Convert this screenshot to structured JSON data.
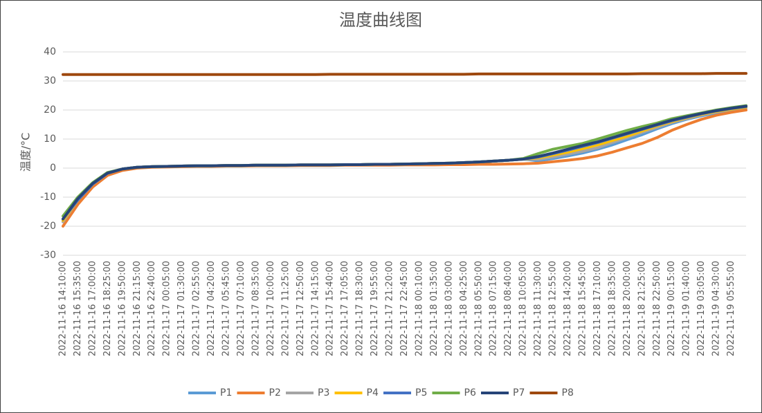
{
  "chart_data": {
    "type": "line",
    "title": "温度曲线图",
    "y_label": "温度/°C",
    "categories": [
      "2022-11-16 14:10:00",
      "2022-11-16 15:35:00",
      "2022-11-16 17:00:00",
      "2022-11-16 18:25:00",
      "2022-11-16 19:50:00",
      "2022-11-16 21:15:00",
      "2022-11-16 22:40:00",
      "2022-11-17 00:05:00",
      "2022-11-17 01:30:00",
      "2022-11-17 02:55:00",
      "2022-11-17 04:20:00",
      "2022-11-17 05:45:00",
      "2022-11-17 07:10:00",
      "2022-11-17 08:35:00",
      "2022-11-17 10:00:00",
      "2022-11-17 11:25:00",
      "2022-11-17 12:50:00",
      "2022-11-17 14:15:00",
      "2022-11-17 15:40:00",
      "2022-11-17 17:05:00",
      "2022-11-17 18:30:00",
      "2022-11-17 19:55:00",
      "2022-11-17 21:20:00",
      "2022-11-17 22:45:00",
      "2022-11-18 00:10:00",
      "2022-11-18 01:35:00",
      "2022-11-18 03:00:00",
      "2022-11-18 04:25:00",
      "2022-11-18 05:50:00",
      "2022-11-18 07:15:00",
      "2022-11-18 08:40:00",
      "2022-11-18 10:05:00",
      "2022-11-18 11:30:00",
      "2022-11-18 12:55:00",
      "2022-11-18 14:20:00",
      "2022-11-18 15:45:00",
      "2022-11-18 17:10:00",
      "2022-11-18 18:35:00",
      "2022-11-18 20:00:00",
      "2022-11-18 21:25:00",
      "2022-11-18 22:50:00",
      "2022-11-19 00:15:00",
      "2022-11-19 01:40:00",
      "2022-11-19 03:05:00",
      "2022-11-19 04:30:00",
      "2022-11-19 05:55:00",
      null
    ],
    "series": [
      {
        "name": "P1",
        "color": "#5b9bd5",
        "values": [
          -18,
          -11,
          -5.5,
          -1.8,
          -0.3,
          0.3,
          0.5,
          0.6,
          0.7,
          0.8,
          0.8,
          0.9,
          0.9,
          1,
          1,
          1,
          1.1,
          1.1,
          1.1,
          1.2,
          1.2,
          1.3,
          1.3,
          1.4,
          1.5,
          1.6,
          1.7,
          1.9,
          2.1,
          2.4,
          2.7,
          3.1,
          2.5,
          3.3,
          4.2,
          5.2,
          6.5,
          8,
          9.8,
          11.5,
          13.5,
          15.3,
          16.8,
          18,
          19,
          20,
          20.8
        ]
      },
      {
        "name": "P2",
        "color": "#ed7d31",
        "values": [
          -20,
          -12.5,
          -6.5,
          -2.5,
          -0.8,
          0,
          0.3,
          0.4,
          0.5,
          0.6,
          0.6,
          0.7,
          0.7,
          0.8,
          0.8,
          0.8,
          0.9,
          0.9,
          0.9,
          1,
          1,
          1,
          1,
          1.1,
          1.1,
          1.1,
          1.2,
          1.2,
          1.3,
          1.3,
          1.4,
          1.5,
          1.7,
          2.2,
          2.7,
          3.3,
          4.2,
          5.5,
          7,
          8.5,
          10.5,
          13,
          15,
          16.8,
          18.2,
          19.2,
          20
        ]
      },
      {
        "name": "P3",
        "color": "#a5a5a5",
        "values": [
          -18.5,
          -11,
          -5.5,
          -1.8,
          -0.3,
          0.3,
          0.5,
          0.6,
          0.7,
          0.8,
          0.8,
          0.9,
          0.9,
          1,
          1,
          1,
          1.1,
          1.1,
          1.1,
          1.2,
          1.2,
          1.3,
          1.3,
          1.4,
          1.5,
          1.6,
          1.7,
          1.9,
          2.1,
          2.4,
          2.7,
          3.1,
          3,
          3.8,
          4.8,
          5.8,
          7,
          8.8,
          10.5,
          12.3,
          14,
          15.7,
          17,
          18.3,
          19.3,
          20.2,
          21
        ]
      },
      {
        "name": "P4",
        "color": "#ffc000",
        "values": [
          -18,
          -11,
          -5.5,
          -1.8,
          -0.3,
          0.3,
          0.5,
          0.6,
          0.7,
          0.8,
          0.8,
          0.9,
          0.9,
          1,
          1,
          1,
          1.1,
          1.1,
          1.1,
          1.2,
          1.2,
          1.3,
          1.3,
          1.4,
          1.5,
          1.6,
          1.7,
          1.9,
          2.1,
          2.4,
          2.7,
          3.1,
          3.5,
          4.5,
          5.5,
          6.7,
          8,
          9.5,
          11,
          12.8,
          14.5,
          16,
          17.3,
          18.5,
          19.5,
          20.3,
          21
        ]
      },
      {
        "name": "P5",
        "color": "#4472c4",
        "values": [
          -17.5,
          -11,
          -5.5,
          -1.8,
          -0.3,
          0.3,
          0.5,
          0.6,
          0.7,
          0.8,
          0.8,
          0.9,
          0.9,
          1,
          1,
          1,
          1.1,
          1.1,
          1.1,
          1.2,
          1.2,
          1.3,
          1.3,
          1.4,
          1.5,
          1.6,
          1.7,
          1.9,
          2.1,
          2.4,
          2.7,
          3.1,
          3.8,
          5,
          6.2,
          7.5,
          8.8,
          10.3,
          11.8,
          13.3,
          14.8,
          16.3,
          17.5,
          18.7,
          19.7,
          20.5,
          21.2
        ]
      },
      {
        "name": "P6",
        "color": "#70ad47",
        "values": [
          -16.5,
          -10,
          -5,
          -1.5,
          -0.3,
          0.3,
          0.5,
          0.6,
          0.7,
          0.8,
          0.8,
          0.9,
          0.9,
          1,
          1,
          1,
          1.1,
          1.1,
          1.1,
          1.2,
          1.2,
          1.3,
          1.3,
          1.4,
          1.5,
          1.6,
          1.7,
          1.9,
          2.1,
          2.4,
          2.7,
          3.3,
          5,
          6.5,
          7.5,
          8.5,
          10,
          11.5,
          13,
          14.3,
          15.5,
          17,
          18,
          19,
          20,
          20.8,
          21.5
        ]
      },
      {
        "name": "P7",
        "color": "#264478",
        "values": [
          -17.5,
          -10.5,
          -5.3,
          -1.7,
          -0.3,
          0.3,
          0.5,
          0.6,
          0.7,
          0.8,
          0.8,
          0.9,
          0.9,
          1,
          1,
          1,
          1.1,
          1.1,
          1.1,
          1.2,
          1.2,
          1.3,
          1.3,
          1.4,
          1.5,
          1.6,
          1.7,
          1.9,
          2.1,
          2.4,
          2.7,
          3.1,
          4,
          5.2,
          6.5,
          7.8,
          9,
          10.5,
          12,
          13.5,
          15,
          16.5,
          17.7,
          18.8,
          19.8,
          20.6,
          21.3
        ]
      },
      {
        "name": "P8",
        "color": "#9e480e",
        "values": [
          32.2,
          32.2,
          32.2,
          32.2,
          32.2,
          32.2,
          32.2,
          32.2,
          32.2,
          32.2,
          32.2,
          32.2,
          32.2,
          32.2,
          32.2,
          32.2,
          32.2,
          32.2,
          32.3,
          32.3,
          32.3,
          32.3,
          32.3,
          32.3,
          32.3,
          32.3,
          32.3,
          32.3,
          32.4,
          32.4,
          32.4,
          32.4,
          32.4,
          32.4,
          32.4,
          32.4,
          32.4,
          32.4,
          32.4,
          32.5,
          32.5,
          32.5,
          32.5,
          32.5,
          32.6,
          32.6,
          32.6
        ]
      }
    ],
    "ylim": [
      -30,
      40
    ],
    "yticks": [
      -30,
      -20,
      -10,
      0,
      10,
      20,
      30,
      40
    ],
    "grid": true,
    "legend": "bottom"
  }
}
